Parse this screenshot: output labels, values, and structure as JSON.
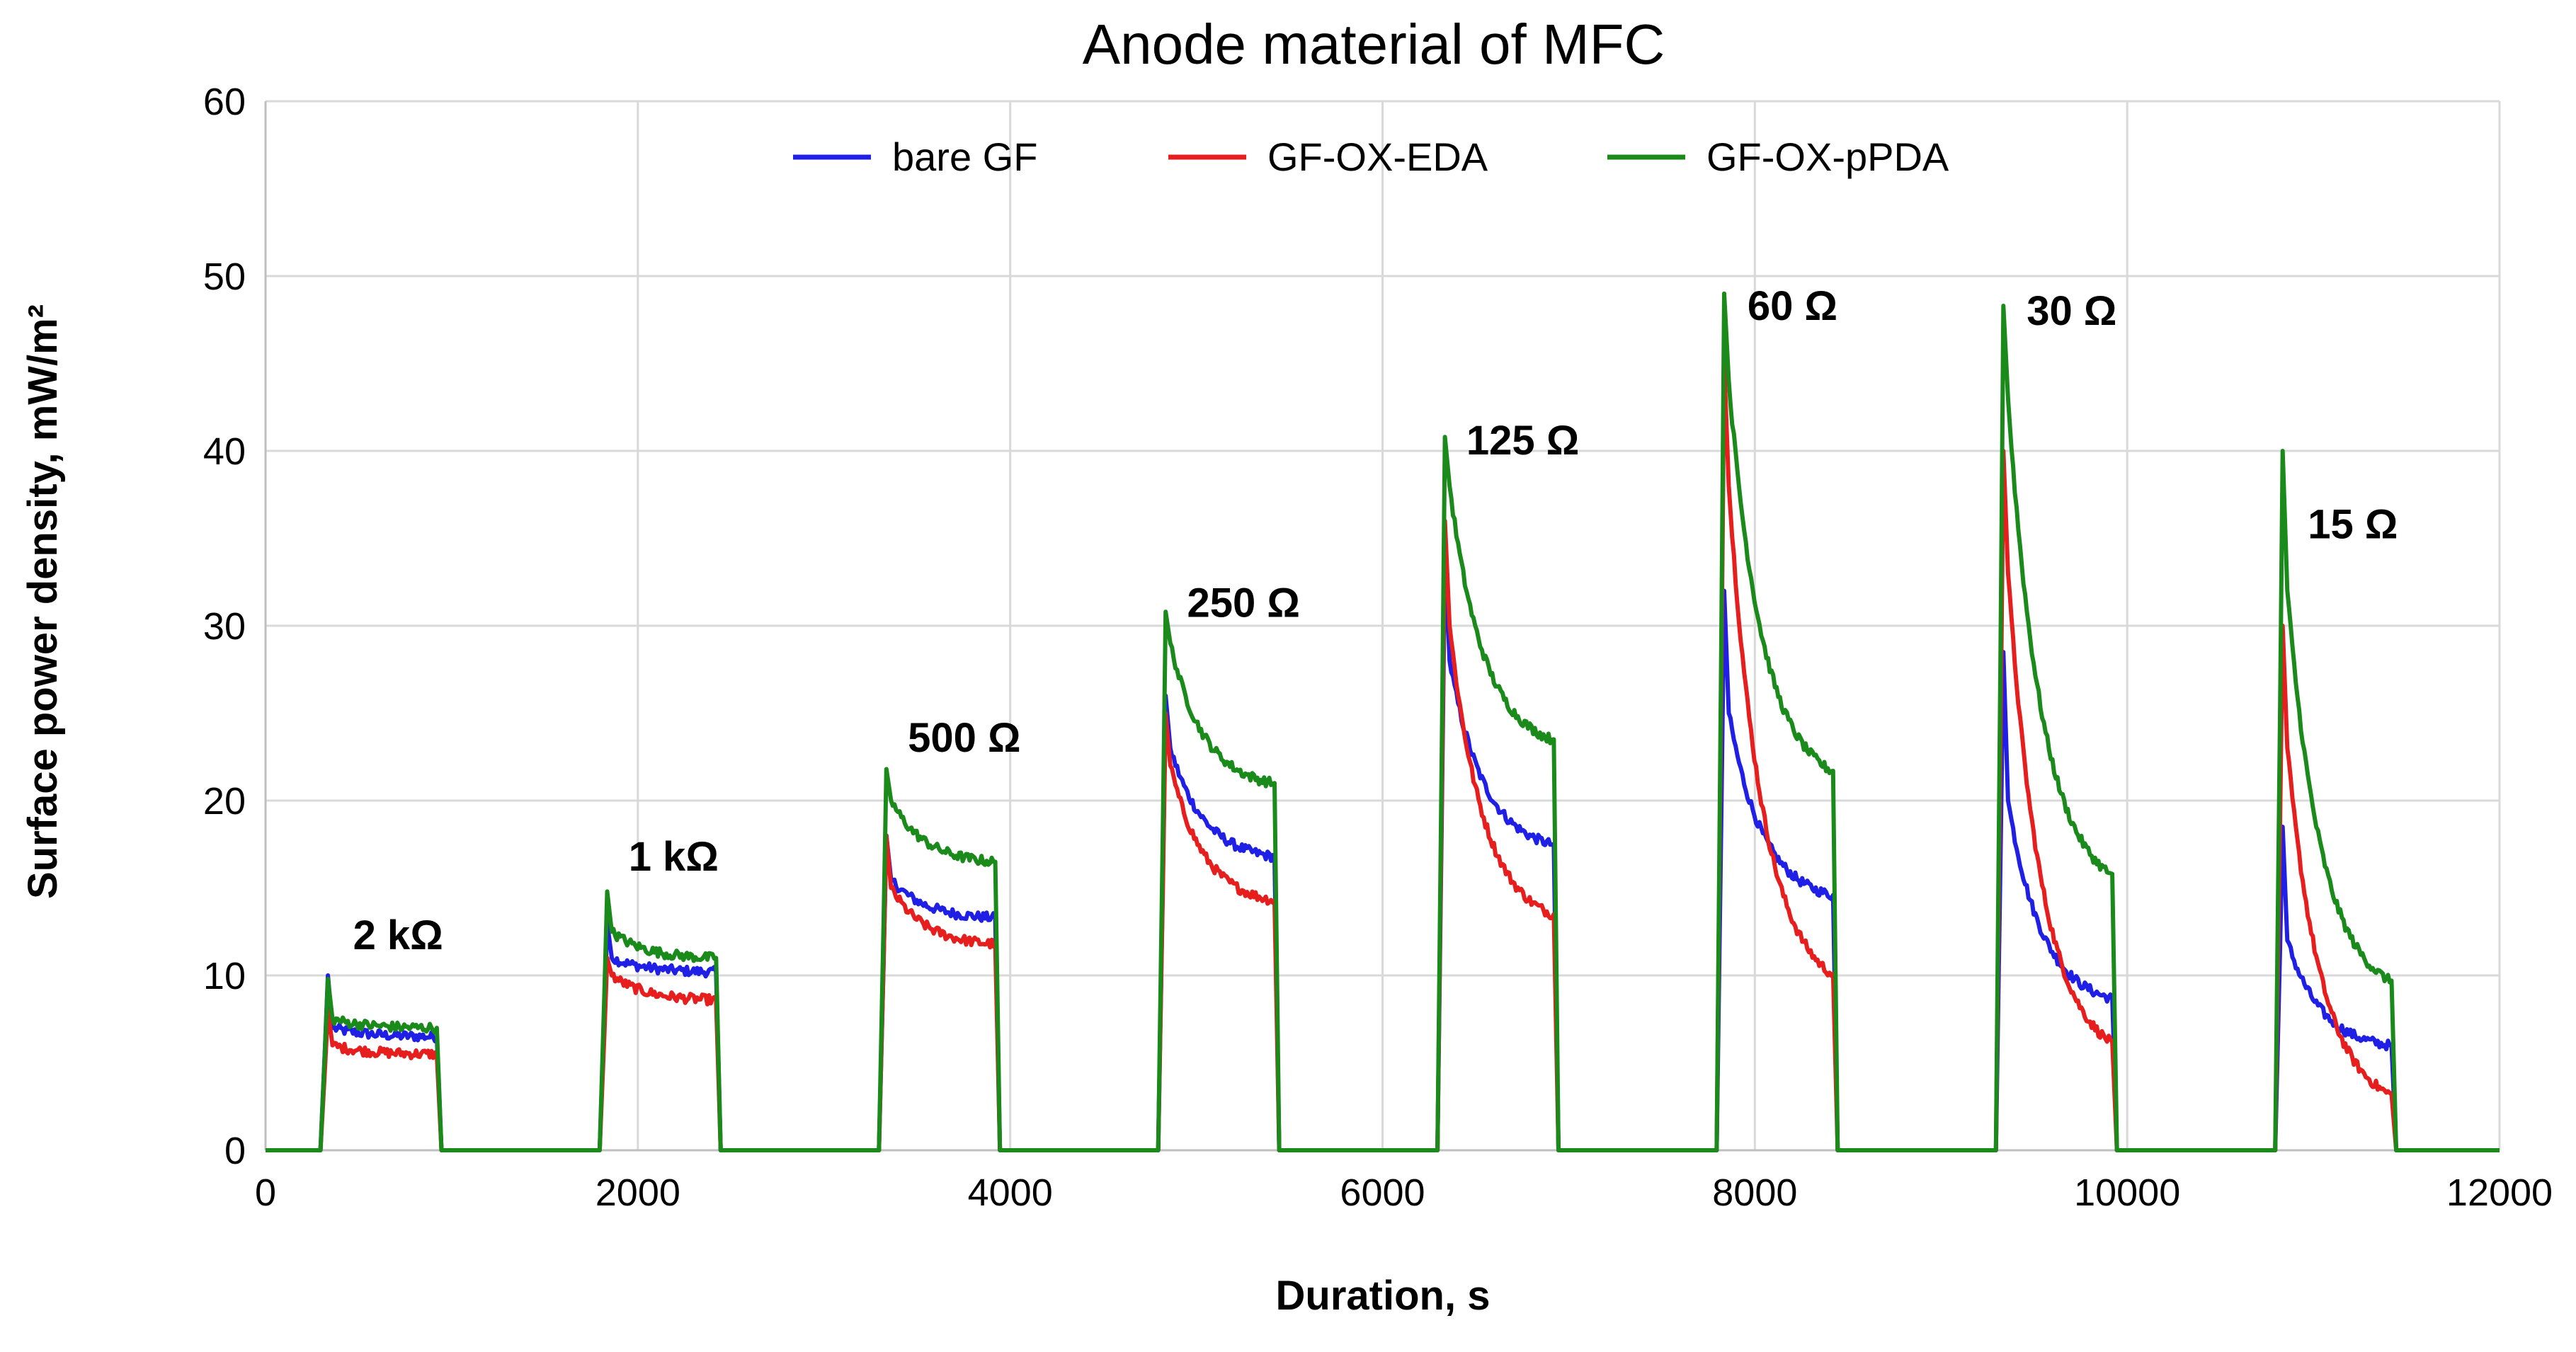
{
  "chart_data": {
    "type": "line",
    "title": "Anode material of  MFC",
    "xlabel": "Duration, s",
    "ylabel": "Surface power density, mW/m²",
    "xlim": [
      0,
      12000
    ],
    "ylim": [
      0,
      60
    ],
    "xticks": [
      0,
      2000,
      4000,
      6000,
      8000,
      10000,
      12000
    ],
    "yticks": [
      0,
      10,
      20,
      30,
      40,
      50,
      60
    ],
    "grid": true,
    "legend_position": "top-center",
    "series": [
      {
        "name": "bare GF",
        "color": "#1f1fe6",
        "pulses": [
          {
            "start": 320,
            "end": 920,
            "peak": 10,
            "after_peak": 7,
            "final": 6.5
          },
          {
            "start": 1820,
            "end": 2420,
            "peak": 13,
            "after_peak": 11,
            "final": 10.2
          },
          {
            "start": 3320,
            "end": 3920,
            "peak": 18,
            "after_peak": 15.5,
            "final": 13.3
          },
          {
            "start": 4820,
            "end": 5420,
            "peak": 26,
            "after_peak": 23,
            "final": 16.8
          },
          {
            "start": 6320,
            "end": 6920,
            "peak": 34,
            "after_peak": 28,
            "final": 17.5
          },
          {
            "start": 7820,
            "end": 8420,
            "peak": 32,
            "after_peak": 25,
            "final": 14.6
          },
          {
            "start": 9320,
            "end": 9920,
            "peak": 28.5,
            "after_peak": 20,
            "final": 8.7
          },
          {
            "start": 10820,
            "end": 11420,
            "peak": 18.5,
            "after_peak": 12,
            "final": 6
          }
        ]
      },
      {
        "name": "GF-OX-EDA",
        "color": "#e61e1e",
        "pulses": [
          {
            "start": 320,
            "end": 920,
            "peak": 8,
            "after_peak": 6,
            "final": 5.5
          },
          {
            "start": 1820,
            "end": 2420,
            "peak": 11,
            "after_peak": 10,
            "final": 8.6
          },
          {
            "start": 3320,
            "end": 3920,
            "peak": 18,
            "after_peak": 15,
            "final": 11.8
          },
          {
            "start": 4820,
            "end": 5420,
            "peak": 25,
            "after_peak": 22,
            "final": 14.3
          },
          {
            "start": 6320,
            "end": 6920,
            "peak": 36,
            "after_peak": 30,
            "final": 13.5
          },
          {
            "start": 7820,
            "end": 8420,
            "peak": 45,
            "after_peak": 38,
            "final": 10.1
          },
          {
            "start": 9320,
            "end": 9920,
            "peak": 40,
            "after_peak": 33,
            "final": 6.2
          },
          {
            "start": 10820,
            "end": 11420,
            "peak": 30,
            "after_peak": 23,
            "final": 3.2
          }
        ]
      },
      {
        "name": "GF-OX-pPDA",
        "color": "#1a8a1a",
        "pulses": [
          {
            "start": 320,
            "end": 920,
            "peak": 9.8,
            "after_peak": 7.5,
            "final": 7
          },
          {
            "start": 1820,
            "end": 2420,
            "peak": 14.8,
            "after_peak": 12.5,
            "final": 11
          },
          {
            "start": 3320,
            "end": 3920,
            "peak": 21.8,
            "after_peak": 20,
            "final": 16.5
          },
          {
            "start": 4820,
            "end": 5420,
            "peak": 30.8,
            "after_peak": 29,
            "final": 21
          },
          {
            "start": 6320,
            "end": 6920,
            "peak": 40.8,
            "after_peak": 38,
            "final": 23.5
          },
          {
            "start": 7820,
            "end": 8420,
            "peak": 49,
            "after_peak": 44,
            "final": 21.7
          },
          {
            "start": 9320,
            "end": 9920,
            "peak": 48.3,
            "after_peak": 43,
            "final": 15.8
          },
          {
            "start": 10820,
            "end": 11420,
            "peak": 40,
            "after_peak": 32,
            "final": 9.7
          }
        ]
      }
    ],
    "annotations": [
      {
        "text": "2 kΩ",
        "x": 470,
        "y": 11.5
      },
      {
        "text": "1 kΩ",
        "x": 1950,
        "y": 16
      },
      {
        "text": "500 Ω",
        "x": 3450,
        "y": 22.8
      },
      {
        "text": "250 Ω",
        "x": 4950,
        "y": 30.5
      },
      {
        "text": "125 Ω",
        "x": 6450,
        "y": 39.8
      },
      {
        "text": "60 Ω",
        "x": 7960,
        "y": 47.5
      },
      {
        "text": "30 Ω",
        "x": 9460,
        "y": 47.2
      },
      {
        "text": "15 Ω",
        "x": 10970,
        "y": 35
      }
    ]
  }
}
